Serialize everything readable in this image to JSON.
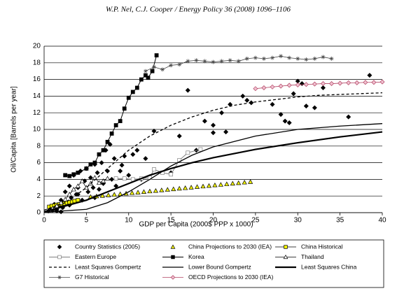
{
  "header": "W.P. Nel, C.J. Cooper / Energy Policy 36 (2008) 1096–1106",
  "chart_data": {
    "type": "scatter",
    "x_label": "GDP per Capita (2000$ PPP x 1000)",
    "y_label": "Oil/Capita [Barrels per year]",
    "xlim": [
      0,
      40
    ],
    "xticks": [
      0,
      5,
      10,
      15,
      20,
      25,
      30,
      35,
      40
    ],
    "ylim": [
      0,
      20
    ],
    "yticks": [
      0,
      2,
      4,
      6,
      8,
      10,
      12,
      14,
      16,
      18,
      20
    ],
    "grid": true,
    "legend": "bottom",
    "series": [
      {
        "name": "Country Statistics (2005)",
        "color": "#000000",
        "marker": "diamond",
        "marker_fill": "#000000",
        "line": "none",
        "x": [
          0.5,
          0.8,
          1,
          1.2,
          1.5,
          1.8,
          2,
          2.2,
          2.5,
          2.8,
          3,
          3.2,
          3.5,
          3.8,
          4,
          4.3,
          4.5,
          4.8,
          5,
          5.2,
          5.5,
          5.8,
          6,
          6.3,
          6.5,
          6.8,
          7,
          7.3,
          7.5,
          7.8,
          8,
          8.3,
          8.5,
          9,
          9.5,
          10,
          10.5,
          11,
          11.5,
          12,
          13,
          15,
          16,
          17,
          18,
          19,
          20,
          21,
          21.5,
          22,
          23.5,
          24,
          24.5,
          27,
          28,
          28.5,
          29,
          29.5,
          30,
          31,
          32,
          33,
          36,
          38.5,
          30.5,
          20,
          3,
          1.5,
          2,
          6,
          4,
          9.2
        ],
        "values": [
          0.2,
          0.5,
          0.3,
          1,
          0.4,
          0.8,
          1.5,
          0.6,
          2.5,
          1.2,
          3.2,
          1.8,
          4.5,
          2.2,
          3,
          5,
          1.5,
          3.8,
          5.3,
          2.5,
          4.2,
          3,
          5.8,
          4.8,
          2.8,
          6,
          3.5,
          7.5,
          5,
          8.2,
          4,
          6.5,
          3.2,
          5,
          6.8,
          4.5,
          7,
          7.5,
          4,
          6.5,
          9.8,
          4.8,
          9.2,
          14.7,
          7.5,
          11,
          10.5,
          12,
          9.7,
          13,
          14,
          13.5,
          13.2,
          13,
          11.8,
          11,
          10.8,
          14.3,
          15.8,
          12.8,
          12.6,
          15,
          11.5,
          16.5,
          15.5,
          9.6,
          0.9,
          0.2,
          0.1,
          1.8,
          2.2,
          5.7
        ]
      },
      {
        "name": "China Projections to 2030 (IEA)",
        "color": "#000000",
        "marker": "triangle",
        "marker_fill": "#f2f200",
        "line": "none",
        "x": [
          5.5,
          6.2,
          6.9,
          7.6,
          8.3,
          9,
          9.7,
          10.4,
          11.1,
          11.8,
          12.5,
          13.2,
          13.9,
          14.6,
          15.3,
          16,
          16.7,
          17.4,
          18.1,
          18.8,
          19.5,
          20.2,
          20.9,
          21.6,
          22.3,
          23,
          23.7,
          24.4
        ],
        "values": [
          1.9,
          1.97,
          2.03,
          2.1,
          2.17,
          2.23,
          2.3,
          2.37,
          2.43,
          2.5,
          2.57,
          2.63,
          2.7,
          2.76,
          2.83,
          2.9,
          2.96,
          3.03,
          3.1,
          3.16,
          3.23,
          3.3,
          3.36,
          3.43,
          3.5,
          3.56,
          3.63,
          3.7
        ]
      },
      {
        "name": "China Historical",
        "color": "#000000",
        "marker": "square",
        "marker_fill": "#f2f200",
        "line": "solid",
        "line_width": 0.8,
        "x": [
          0.6,
          0.9,
          1.2,
          1.5,
          1.8,
          2.1,
          2.4,
          2.7,
          3,
          3.3,
          3.6,
          4
        ],
        "values": [
          0.7,
          0.8,
          0.85,
          0.95,
          1,
          1.05,
          1.1,
          1.2,
          1.25,
          1.3,
          1.4,
          1.5
        ]
      },
      {
        "name": "Eastern Europe",
        "color": "#808080",
        "marker": "square",
        "marker_fill": "#ffffff",
        "line": "solid",
        "line_width": 1,
        "x": [
          8.5,
          9.5,
          10.5,
          11.5,
          12.5,
          13,
          14,
          15,
          16,
          17,
          18.5
        ],
        "values": [
          4.1,
          4.1,
          4,
          4.1,
          4.2,
          5.2,
          4.8,
          4.6,
          6.3,
          7.2,
          7.6
        ]
      },
      {
        "name": "Korea",
        "color": "#000000",
        "marker": "square",
        "marker_fill": "#000000",
        "line": "solid",
        "line_width": 1,
        "x": [
          2.5,
          3,
          3.5,
          4,
          5,
          5.5,
          6,
          6.5,
          7,
          7.5,
          8,
          8.5,
          9,
          9.5,
          10,
          10.5,
          11,
          11.5,
          12,
          12.3,
          12.8,
          13.3
        ],
        "values": [
          4.5,
          4.4,
          4.6,
          4.8,
          5.3,
          5.8,
          6,
          7,
          7.5,
          8.5,
          9.5,
          10.5,
          11,
          12.5,
          13.8,
          14.5,
          15,
          16,
          16.5,
          16.2,
          17,
          18.9
        ]
      },
      {
        "name": "Thailand",
        "color": "#000000",
        "marker": "triangle",
        "marker_fill": "#ffffff",
        "line": "solid",
        "line_width": 0.8,
        "x": [
          1,
          1.5,
          2,
          2.5,
          3,
          3.5,
          4,
          4.5,
          5,
          5.5,
          6,
          6.5,
          7,
          7.5
        ],
        "values": [
          0.5,
          0.8,
          1.2,
          1.6,
          2.2,
          2.8,
          3.2,
          3.8,
          3,
          3.5,
          4.2,
          3.6,
          3.8,
          4.1
        ]
      },
      {
        "name": "Least Squares Gompertz",
        "color": "#000000",
        "marker": "none",
        "line": "dashed",
        "line_width": 1.3,
        "x": [
          0,
          2.5,
          5,
          7.5,
          10,
          12.5,
          15,
          17.5,
          20,
          22.5,
          25,
          27.5,
          30,
          32.5,
          35,
          37.5,
          40
        ],
        "values": [
          0.3,
          1.2,
          3,
          5.3,
          7.5,
          9.2,
          10.5,
          11.5,
          12.3,
          12.9,
          13.3,
          13.6,
          13.9,
          14.1,
          14.2,
          14.3,
          14.4
        ]
      },
      {
        "name": "Lower Bound Gompertz",
        "color": "#000000",
        "marker": "none",
        "line": "solid",
        "line_width": 1.3,
        "x": [
          0,
          5,
          7.5,
          10,
          12.5,
          15,
          17.5,
          20,
          25,
          30,
          35,
          40
        ],
        "values": [
          0.05,
          0.4,
          1.2,
          2.5,
          4,
          5.6,
          6.9,
          7.9,
          9.2,
          10,
          10.4,
          10.7
        ]
      },
      {
        "name": "Least Squares China",
        "color": "#000000",
        "marker": "none",
        "line": "solid",
        "line_width": 2.2,
        "x": [
          0,
          5,
          7.5,
          10,
          12.5,
          15,
          17.5,
          20,
          25,
          30,
          35,
          40
        ],
        "values": [
          0.1,
          1.5,
          2.5,
          3.5,
          4.5,
          5.3,
          6,
          6.6,
          7.6,
          8.4,
          9.1,
          9.7
        ]
      },
      {
        "name": "G7 Historical",
        "color": "#444444",
        "marker": "asterisk",
        "marker_fill": "none",
        "line": "solid",
        "line_width": 0.8,
        "x": [
          12,
          13,
          14,
          15,
          16,
          17,
          18,
          19,
          20,
          21,
          22,
          23,
          24,
          25,
          26,
          27,
          28,
          29,
          30,
          31,
          32,
          33,
          34
        ],
        "values": [
          17,
          17.5,
          17.2,
          17.7,
          17.8,
          18.2,
          18.3,
          18.2,
          18.1,
          18.2,
          18.3,
          18.2,
          18.5,
          18.6,
          18.5,
          18.6,
          18.8,
          18.6,
          18.5,
          18.4,
          18.5,
          18.7,
          18.5
        ]
      },
      {
        "name": "OECD Projections to 2030 (IEA)",
        "color": "#b04060",
        "marker": "diamond",
        "marker_fill": "#f0c0d0",
        "line": "solid",
        "line_width": 0.8,
        "x": [
          25,
          26,
          27,
          28,
          29,
          30,
          31,
          32,
          33,
          34,
          35,
          36,
          37,
          38,
          39,
          40
        ],
        "values": [
          14.9,
          15,
          15.1,
          15.2,
          15.3,
          15.35,
          15.4,
          15.45,
          15.5,
          15.5,
          15.55,
          15.6,
          15.6,
          15.65,
          15.65,
          15.7
        ]
      }
    ]
  }
}
